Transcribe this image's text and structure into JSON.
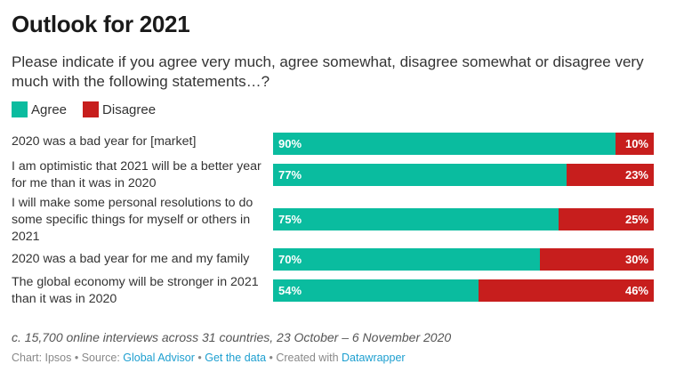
{
  "header": {
    "title": "Outlook for 2021",
    "subtitle": "Please indicate if you agree very much, agree somewhat, disagree somewhat or disagree very much with the following statements…?"
  },
  "colors": {
    "agree": "#0abc9f",
    "disagree": "#c71e1d"
  },
  "chart_data": {
    "type": "bar",
    "orientation": "horizontal",
    "stacked": true,
    "title": "Outlook for 2021",
    "xlim": [
      0,
      100
    ],
    "legend_position": "top-left",
    "categories": [
      "2020 was a bad year for [market]",
      "I am optimistic that 2021 will be a better year for me than it was in 2020",
      "I will make some personal resolutions to do some specific things for myself or others in 2021",
      "2020 was a bad year for me and my family",
      "The global economy will be stronger in 2021 than it was in 2020"
    ],
    "series": [
      {
        "name": "Agree",
        "values": [
          90,
          77,
          75,
          70,
          54
        ],
        "labels": [
          "90%",
          "77%",
          "75%",
          "70%",
          "54%"
        ]
      },
      {
        "name": "Disagree",
        "values": [
          10,
          23,
          25,
          30,
          46
        ],
        "labels": [
          "10%",
          "23%",
          "25%",
          "30%",
          "46%"
        ]
      }
    ]
  },
  "footer": {
    "notes": "c. 15,700 online interviews across 31 countries, 23 October – 6 November 2020",
    "chart_prefix": "Chart: Ipsos",
    "sep": " • ",
    "source_prefix": "Source: ",
    "source_link": "Global Advisor",
    "get_data": "Get the data",
    "created_prefix": "Created with ",
    "created_link": "Datawrapper"
  }
}
